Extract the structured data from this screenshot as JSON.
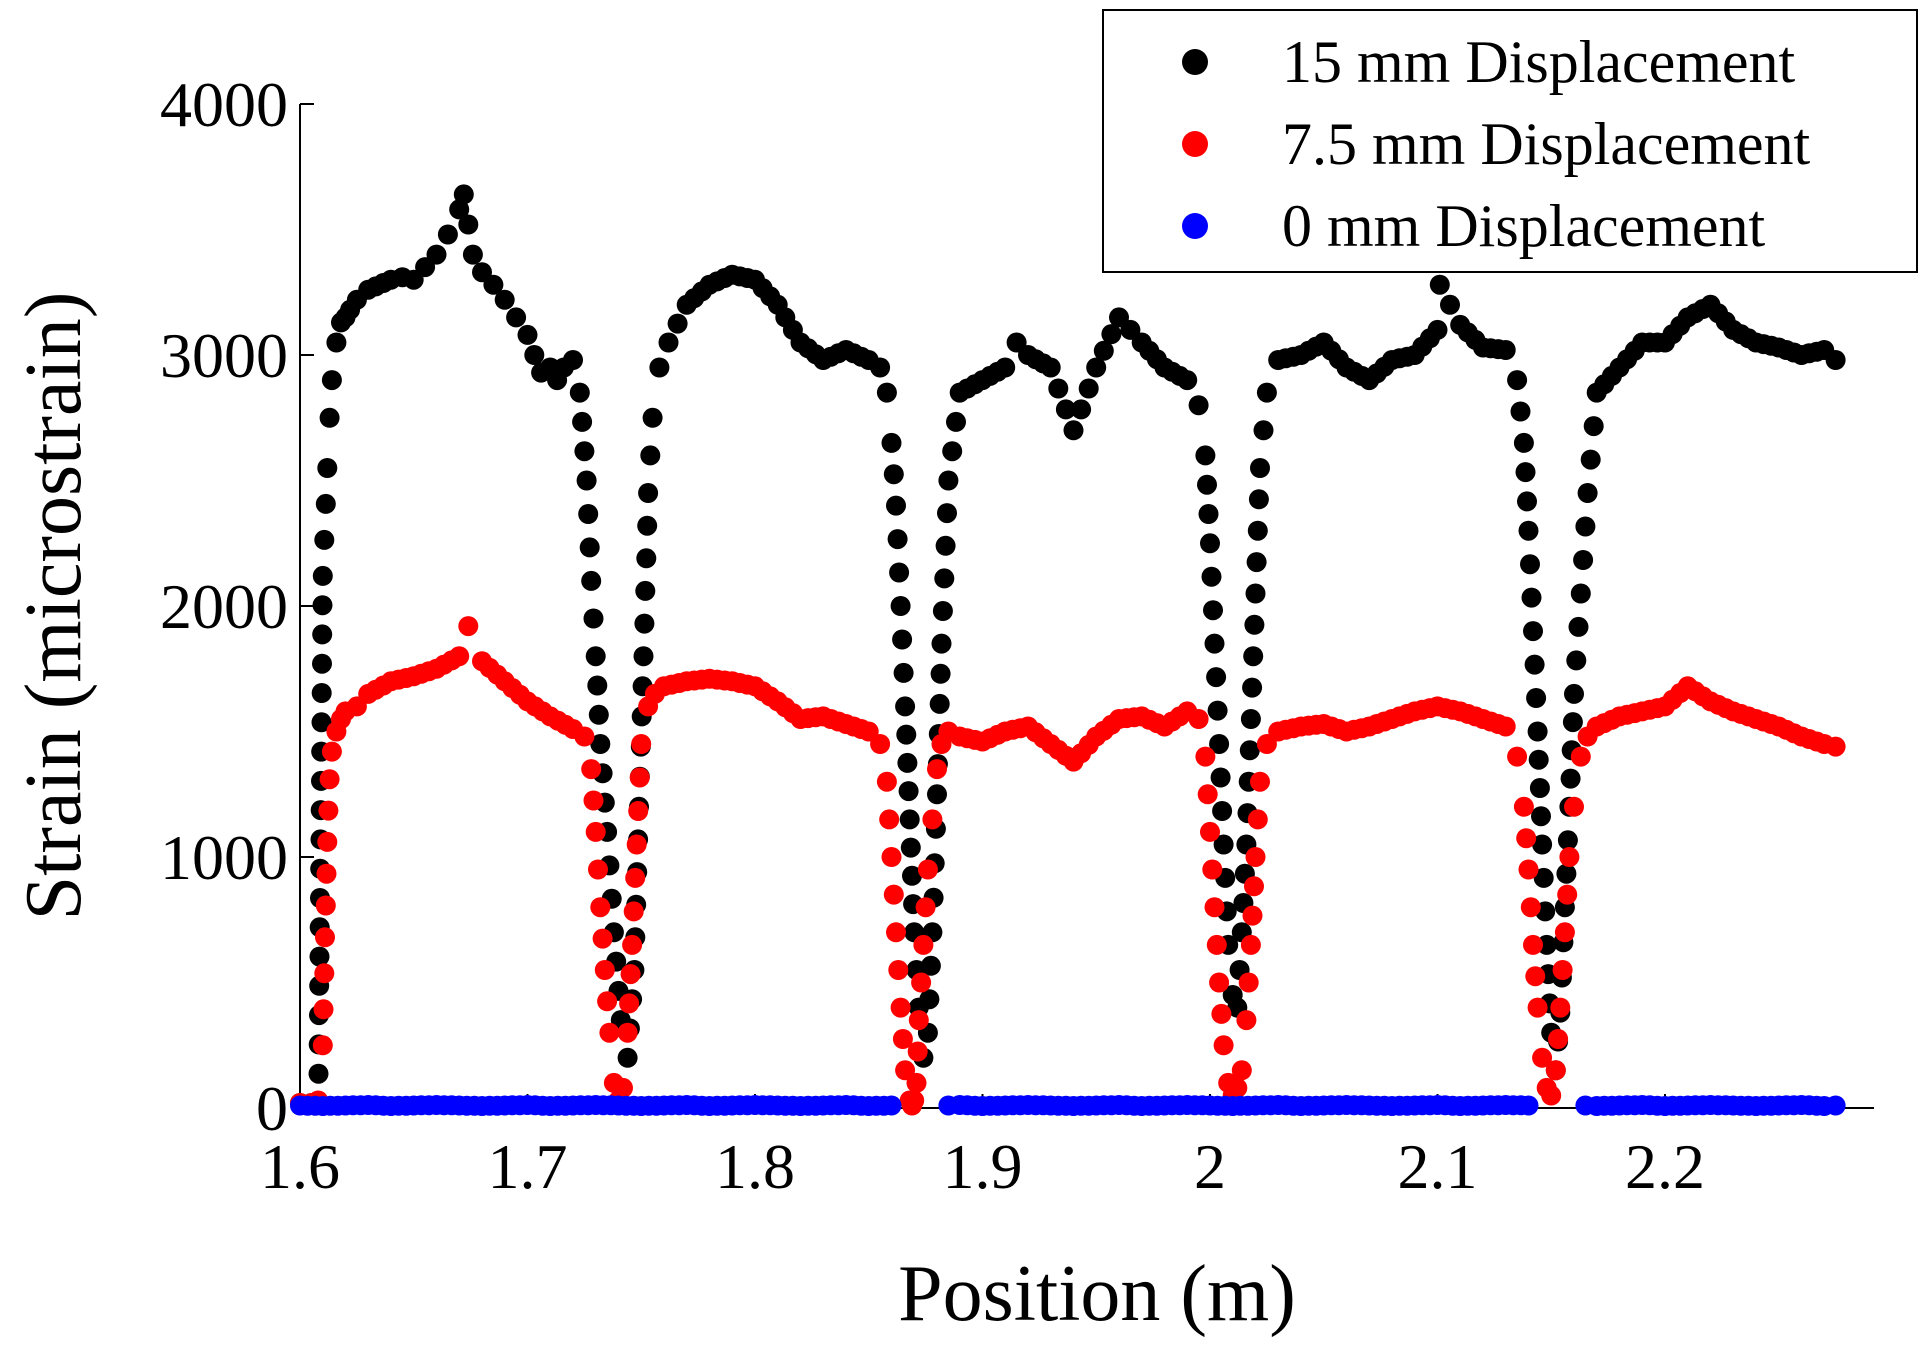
{
  "chart_data": {
    "type": "scatter",
    "title": "",
    "xlabel": "Position (m)",
    "ylabel": "Strain (microstrain)",
    "xlim": [
      1.6,
      2.28
    ],
    "ylim": [
      0,
      4000
    ],
    "xticks": [
      1.6,
      1.7,
      1.8,
      1.9,
      2.0,
      2.1,
      2.2
    ],
    "xtick_labels": [
      "1.6",
      "1.7",
      "1.8",
      "1.9",
      "2",
      "2.1",
      "2.2"
    ],
    "yticks": [
      0,
      1000,
      2000,
      3000,
      4000
    ],
    "ytick_labels": [
      "0",
      "1000",
      "2000",
      "3000",
      "4000"
    ],
    "grid": false,
    "legend_position": "top-right",
    "series": [
      {
        "name": "15 mm Displacement",
        "color": "#000000",
        "x": [
          1.6,
          1.605,
          1.608,
          1.61,
          1.612,
          1.613,
          1.614,
          1.616,
          1.618,
          1.62,
          1.622,
          1.625,
          1.63,
          1.64,
          1.645,
          1.65,
          1.655,
          1.66,
          1.665,
          1.67,
          1.672,
          1.674,
          1.676,
          1.68,
          1.685,
          1.69,
          1.695,
          1.7,
          1.703,
          1.706,
          1.71,
          1.713,
          1.716,
          1.72,
          1.723,
          1.726,
          1.728,
          1.73,
          1.732,
          1.735,
          1.738,
          1.741,
          1.744,
          1.747,
          1.749,
          1.751,
          1.753,
          1.755,
          1.758,
          1.762,
          1.77,
          1.78,
          1.79,
          1.8,
          1.81,
          1.82,
          1.83,
          1.84,
          1.85,
          1.855,
          1.858,
          1.86,
          1.862,
          1.864,
          1.866,
          1.868,
          1.87,
          1.872,
          1.874,
          1.876,
          1.878,
          1.88,
          1.882,
          1.885,
          1.89,
          1.9,
          1.91,
          1.915,
          1.92,
          1.93,
          1.94,
          1.95,
          1.96,
          1.965,
          1.97,
          1.98,
          1.99,
          1.995,
          1.998,
          2.0,
          2.002,
          2.004,
          2.006,
          2.008,
          2.01,
          2.012,
          2.014,
          2.016,
          2.018,
          2.02,
          2.022,
          2.025,
          2.03,
          2.04,
          2.05,
          2.06,
          2.07,
          2.08,
          2.09,
          2.1,
          2.101,
          2.11,
          2.12,
          2.13,
          2.135,
          2.138,
          2.14,
          2.142,
          2.144,
          2.146,
          2.148,
          2.15,
          2.152,
          2.154,
          2.156,
          2.158,
          2.16,
          2.163,
          2.166,
          2.17,
          2.18,
          2.19,
          2.2,
          2.21,
          2.22,
          2.23,
          2.24,
          2.25,
          2.26,
          2.27,
          2.275
        ],
        "y": [
          20,
          20,
          20,
          2120,
          2550,
          2750,
          2900,
          3050,
          3130,
          3150,
          3180,
          3220,
          3260,
          3300,
          3310,
          3300,
          3350,
          3400,
          3480,
          3580,
          3640,
          3520,
          3400,
          3330,
          3280,
          3220,
          3150,
          3080,
          3000,
          2930,
          2950,
          2900,
          2950,
          2980,
          2850,
          2500,
          2100,
          1800,
          1450,
          1100,
          700,
          350,
          200,
          550,
          1200,
          1800,
          2450,
          2750,
          2950,
          3050,
          3200,
          3280,
          3320,
          3300,
          3200,
          3050,
          2980,
          3020,
          2980,
          2950,
          2850,
          2650,
          2400,
          2000,
          1600,
          1150,
          700,
          400,
          200,
          300,
          700,
          1250,
          1850,
          2500,
          2850,
          2900,
          2950,
          3050,
          3000,
          2950,
          2700,
          2950,
          3150,
          3100,
          3050,
          2950,
          2900,
          2800,
          2600,
          2250,
          1850,
          1450,
          1050,
          650,
          450,
          400,
          700,
          1050,
          1550,
          2050,
          2550,
          2850,
          2980,
          3000,
          3050,
          2950,
          2900,
          2980,
          3000,
          3100,
          3280,
          3120,
          3030,
          3020,
          2900,
          2650,
          2300,
          1900,
          1500,
          1050,
          650,
          300,
          150,
          380,
          800,
          1200,
          1650,
          2050,
          2450,
          2850,
          2950,
          3050,
          3050,
          3150,
          3200,
          3100,
          3050,
          3030,
          3000,
          3020,
          2980
        ]
      },
      {
        "name": "7.5 mm Displacement",
        "color": "#ff0000",
        "x": [
          1.6,
          1.605,
          1.608,
          1.61,
          1.611,
          1.612,
          1.613,
          1.614,
          1.616,
          1.618,
          1.62,
          1.625,
          1.63,
          1.64,
          1.65,
          1.66,
          1.67,
          1.674,
          1.68,
          1.69,
          1.7,
          1.71,
          1.72,
          1.725,
          1.728,
          1.73,
          1.732,
          1.734,
          1.736,
          1.738,
          1.74,
          1.742,
          1.744,
          1.746,
          1.748,
          1.75,
          1.753,
          1.756,
          1.76,
          1.77,
          1.78,
          1.79,
          1.8,
          1.81,
          1.82,
          1.83,
          1.84,
          1.85,
          1.855,
          1.858,
          1.86,
          1.862,
          1.864,
          1.866,
          1.868,
          1.869,
          1.87,
          1.871,
          1.872,
          1.874,
          1.876,
          1.878,
          1.88,
          1.882,
          1.885,
          1.89,
          1.9,
          1.91,
          1.92,
          1.93,
          1.94,
          1.95,
          1.96,
          1.97,
          1.98,
          1.99,
          1.995,
          1.998,
          2.0,
          2.002,
          2.004,
          2.006,
          2.008,
          2.01,
          2.012,
          2.014,
          2.016,
          2.018,
          2.02,
          2.022,
          2.025,
          2.03,
          2.04,
          2.05,
          2.06,
          2.07,
          2.08,
          2.09,
          2.1,
          2.11,
          2.12,
          2.13,
          2.135,
          2.138,
          2.14,
          2.142,
          2.144,
          2.146,
          2.148,
          2.15,
          2.152,
          2.154,
          2.156,
          2.158,
          2.16,
          2.163,
          2.166,
          2.17,
          2.18,
          2.19,
          2.2,
          2.21,
          2.22,
          2.23,
          2.24,
          2.25,
          2.26,
          2.27,
          2.275
        ],
        "y": [
          20,
          20,
          30,
          250,
          680,
          1060,
          1310,
          1420,
          1500,
          1550,
          1580,
          1600,
          1650,
          1700,
          1720,
          1750,
          1800,
          1920,
          1780,
          1700,
          1620,
          1560,
          1510,
          1480,
          1350,
          1100,
          800,
          550,
          300,
          100,
          30,
          80,
          300,
          650,
          1050,
          1450,
          1600,
          1650,
          1680,
          1700,
          1710,
          1700,
          1680,
          1620,
          1550,
          1560,
          1530,
          1500,
          1450,
          1300,
          1000,
          700,
          400,
          150,
          30,
          10,
          30,
          100,
          350,
          650,
          950,
          1150,
          1350,
          1450,
          1500,
          1480,
          1460,
          1500,
          1520,
          1450,
          1380,
          1480,
          1550,
          1560,
          1520,
          1580,
          1550,
          1400,
          1100,
          800,
          500,
          250,
          100,
          50,
          80,
          150,
          350,
          650,
          1000,
          1300,
          1450,
          1500,
          1520,
          1530,
          1500,
          1520,
          1550,
          1580,
          1600,
          1580,
          1550,
          1520,
          1400,
          1200,
          950,
          650,
          400,
          200,
          80,
          50,
          150,
          400,
          700,
          1000,
          1200,
          1400,
          1480,
          1520,
          1560,
          1580,
          1600,
          1680,
          1620,
          1580,
          1550,
          1520,
          1480,
          1450,
          1440
        ]
      },
      {
        "name": "0 mm Displacement",
        "color": "#0000ff",
        "x": [
          1.6,
          1.61,
          1.62,
          1.63,
          1.64,
          1.65,
          1.66,
          1.67,
          1.68,
          1.69,
          1.7,
          1.71,
          1.72,
          1.73,
          1.74,
          1.75,
          1.76,
          1.77,
          1.78,
          1.79,
          1.8,
          1.81,
          1.82,
          1.83,
          1.84,
          1.85,
          1.86,
          1.885,
          1.89,
          1.9,
          1.91,
          1.92,
          1.93,
          1.94,
          1.95,
          1.96,
          1.97,
          1.98,
          1.99,
          2.0,
          2.01,
          2.02,
          2.03,
          2.04,
          2.05,
          2.06,
          2.07,
          2.08,
          2.09,
          2.1,
          2.11,
          2.12,
          2.13,
          2.14,
          2.165,
          2.17,
          2.18,
          2.19,
          2.2,
          2.21,
          2.22,
          2.23,
          2.24,
          2.25,
          2.26,
          2.27,
          2.275
        ],
        "y": [
          10,
          8,
          10,
          12,
          8,
          10,
          12,
          10,
          8,
          10,
          12,
          8,
          10,
          12,
          10,
          8,
          10,
          12,
          8,
          10,
          12,
          10,
          8,
          10,
          12,
          8,
          10,
          10,
          12,
          8,
          10,
          12,
          10,
          8,
          10,
          12,
          8,
          10,
          12,
          10,
          8,
          10,
          12,
          8,
          10,
          12,
          10,
          8,
          10,
          12,
          8,
          10,
          12,
          10,
          10,
          8,
          10,
          12,
          8,
          10,
          12,
          10,
          8,
          10,
          12,
          8,
          10
        ]
      }
    ]
  }
}
